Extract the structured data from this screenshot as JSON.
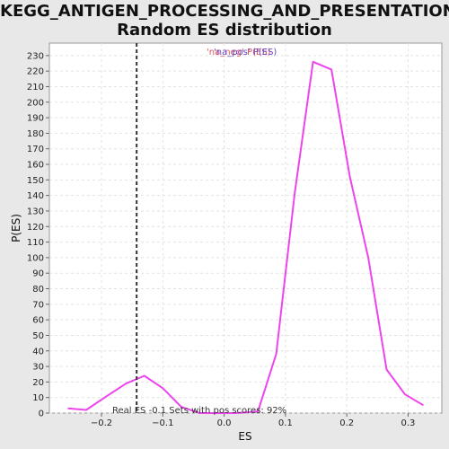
{
  "chart_data": {
    "type": "line",
    "title_line1": "KEGG_ANTIGEN_PROCESSING_AND_PRESENTATION:",
    "title_line2": "Random ES distribution",
    "xlabel": "ES",
    "ylabel": "P(ES)",
    "xlim": [
      -0.285,
      0.355
    ],
    "ylim": [
      0,
      238
    ],
    "xticks": [
      -0.2,
      -0.1,
      0.0,
      0.1,
      0.2,
      0.3
    ],
    "xtick_labels": [
      "−0.2",
      "−0.1",
      "0.0",
      "0.1",
      "0.2",
      "0.3"
    ],
    "yticks": [
      0,
      10,
      20,
      30,
      40,
      50,
      60,
      70,
      80,
      90,
      100,
      110,
      120,
      130,
      140,
      150,
      160,
      170,
      180,
      190,
      200,
      210,
      220,
      230
    ],
    "grid": true,
    "legend": {
      "placement": "top-center",
      "entries": [
        {
          "label": "'na_neg' P(ES)",
          "color": "#dd5555"
        },
        {
          "label": "'na_pos' P(ES)",
          "color": "#6644cc"
        }
      ]
    },
    "series": [
      {
        "color": "#ee44ee",
        "x": [
          -0.255,
          -0.225,
          -0.195,
          -0.16,
          -0.13,
          -0.1,
          -0.07,
          -0.04,
          -0.01,
          0.02,
          0.055,
          0.085,
          0.115,
          0.145,
          0.175,
          0.205,
          0.235,
          0.265,
          0.295,
          0.325
        ],
        "y": [
          3,
          2,
          10,
          19,
          24,
          16,
          4,
          0,
          0,
          0,
          1,
          38,
          141,
          226,
          221,
          152,
          100,
          28,
          12,
          5
        ]
      }
    ],
    "real_es": {
      "value": -0.1427,
      "color": "#333333"
    },
    "annotation": "Real ES -0.1  Sets with pos scores: 92%"
  }
}
